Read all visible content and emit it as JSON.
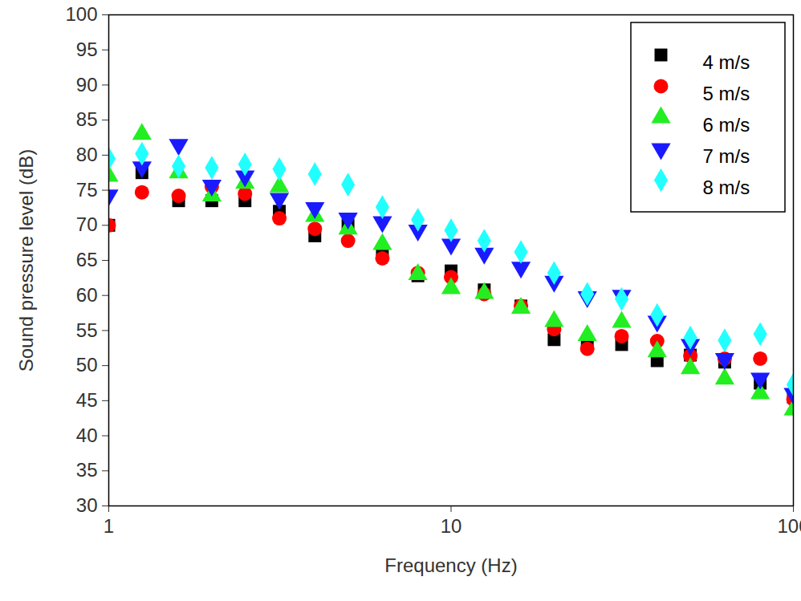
{
  "chart_data": {
    "type": "scatter",
    "x_label": "Frequency (Hz)",
    "y_label": "Sound pressure level (dB)",
    "log": "x",
    "grid": false,
    "legend": "top-right",
    "xlim": [
      1,
      100
    ],
    "xticks": [
      1,
      10,
      100
    ],
    "ylim": [
      30,
      100
    ],
    "yticks": [
      30,
      35,
      40,
      45,
      50,
      55,
      60,
      65,
      70,
      75,
      80,
      85,
      90,
      95,
      100
    ],
    "x": [
      1,
      1.25,
      1.6,
      2,
      2.5,
      3.15,
      4,
      5,
      6.3,
      8,
      10,
      12.5,
      16,
      20,
      25,
      31.5,
      40,
      50,
      63,
      80,
      100
    ],
    "series": [
      {
        "name": "4 m/s",
        "color": "#000000",
        "marker": "square",
        "values": [
          70,
          77.5,
          73.5,
          73.5,
          73.5,
          72,
          68.5,
          70,
          66,
          62.8,
          63.5,
          60.8,
          58.5,
          53.7,
          53,
          53,
          50.7,
          51.5,
          50.5,
          47.5,
          45.5
        ]
      },
      {
        "name": "5 m/s",
        "color": "#ff0000",
        "marker": "circle",
        "values": [
          70,
          74.7,
          74.2,
          75.5,
          74.5,
          71,
          69.5,
          67.8,
          65.3,
          63.2,
          62.6,
          60.2,
          58.5,
          55.2,
          52.4,
          54.2,
          53.5,
          51.4,
          51,
          51,
          45.2
        ]
      },
      {
        "name": "6 m/s",
        "color": "#22ee22",
        "marker": "triangle",
        "values": [
          77,
          83,
          77.5,
          74.2,
          76,
          75.5,
          71.3,
          69.5,
          67.3,
          63,
          61,
          60.3,
          58.2,
          56.3,
          54.3,
          56.2,
          52,
          49.6,
          48.1,
          46,
          43.7
        ]
      },
      {
        "name": "7 m/s",
        "color": "#1a1aff",
        "marker": "triangle-down",
        "values": [
          74.3,
          78.3,
          81.5,
          75.7,
          77,
          73.8,
          72.5,
          71,
          70.5,
          69.3,
          67.3,
          66,
          64,
          62,
          59.8,
          60,
          56.3,
          53,
          51,
          48.2,
          46
        ]
      },
      {
        "name": "8 m/s",
        "color": "#22ffff",
        "marker": "diamond",
        "values": [
          79.5,
          80.2,
          78.4,
          78.2,
          78.7,
          78,
          77.3,
          75.8,
          72.6,
          70.8,
          69.3,
          67.8,
          66.2,
          63.2,
          60.2,
          59.5,
          57.2,
          54,
          53.6,
          54.5,
          47.3
        ]
      }
    ]
  }
}
